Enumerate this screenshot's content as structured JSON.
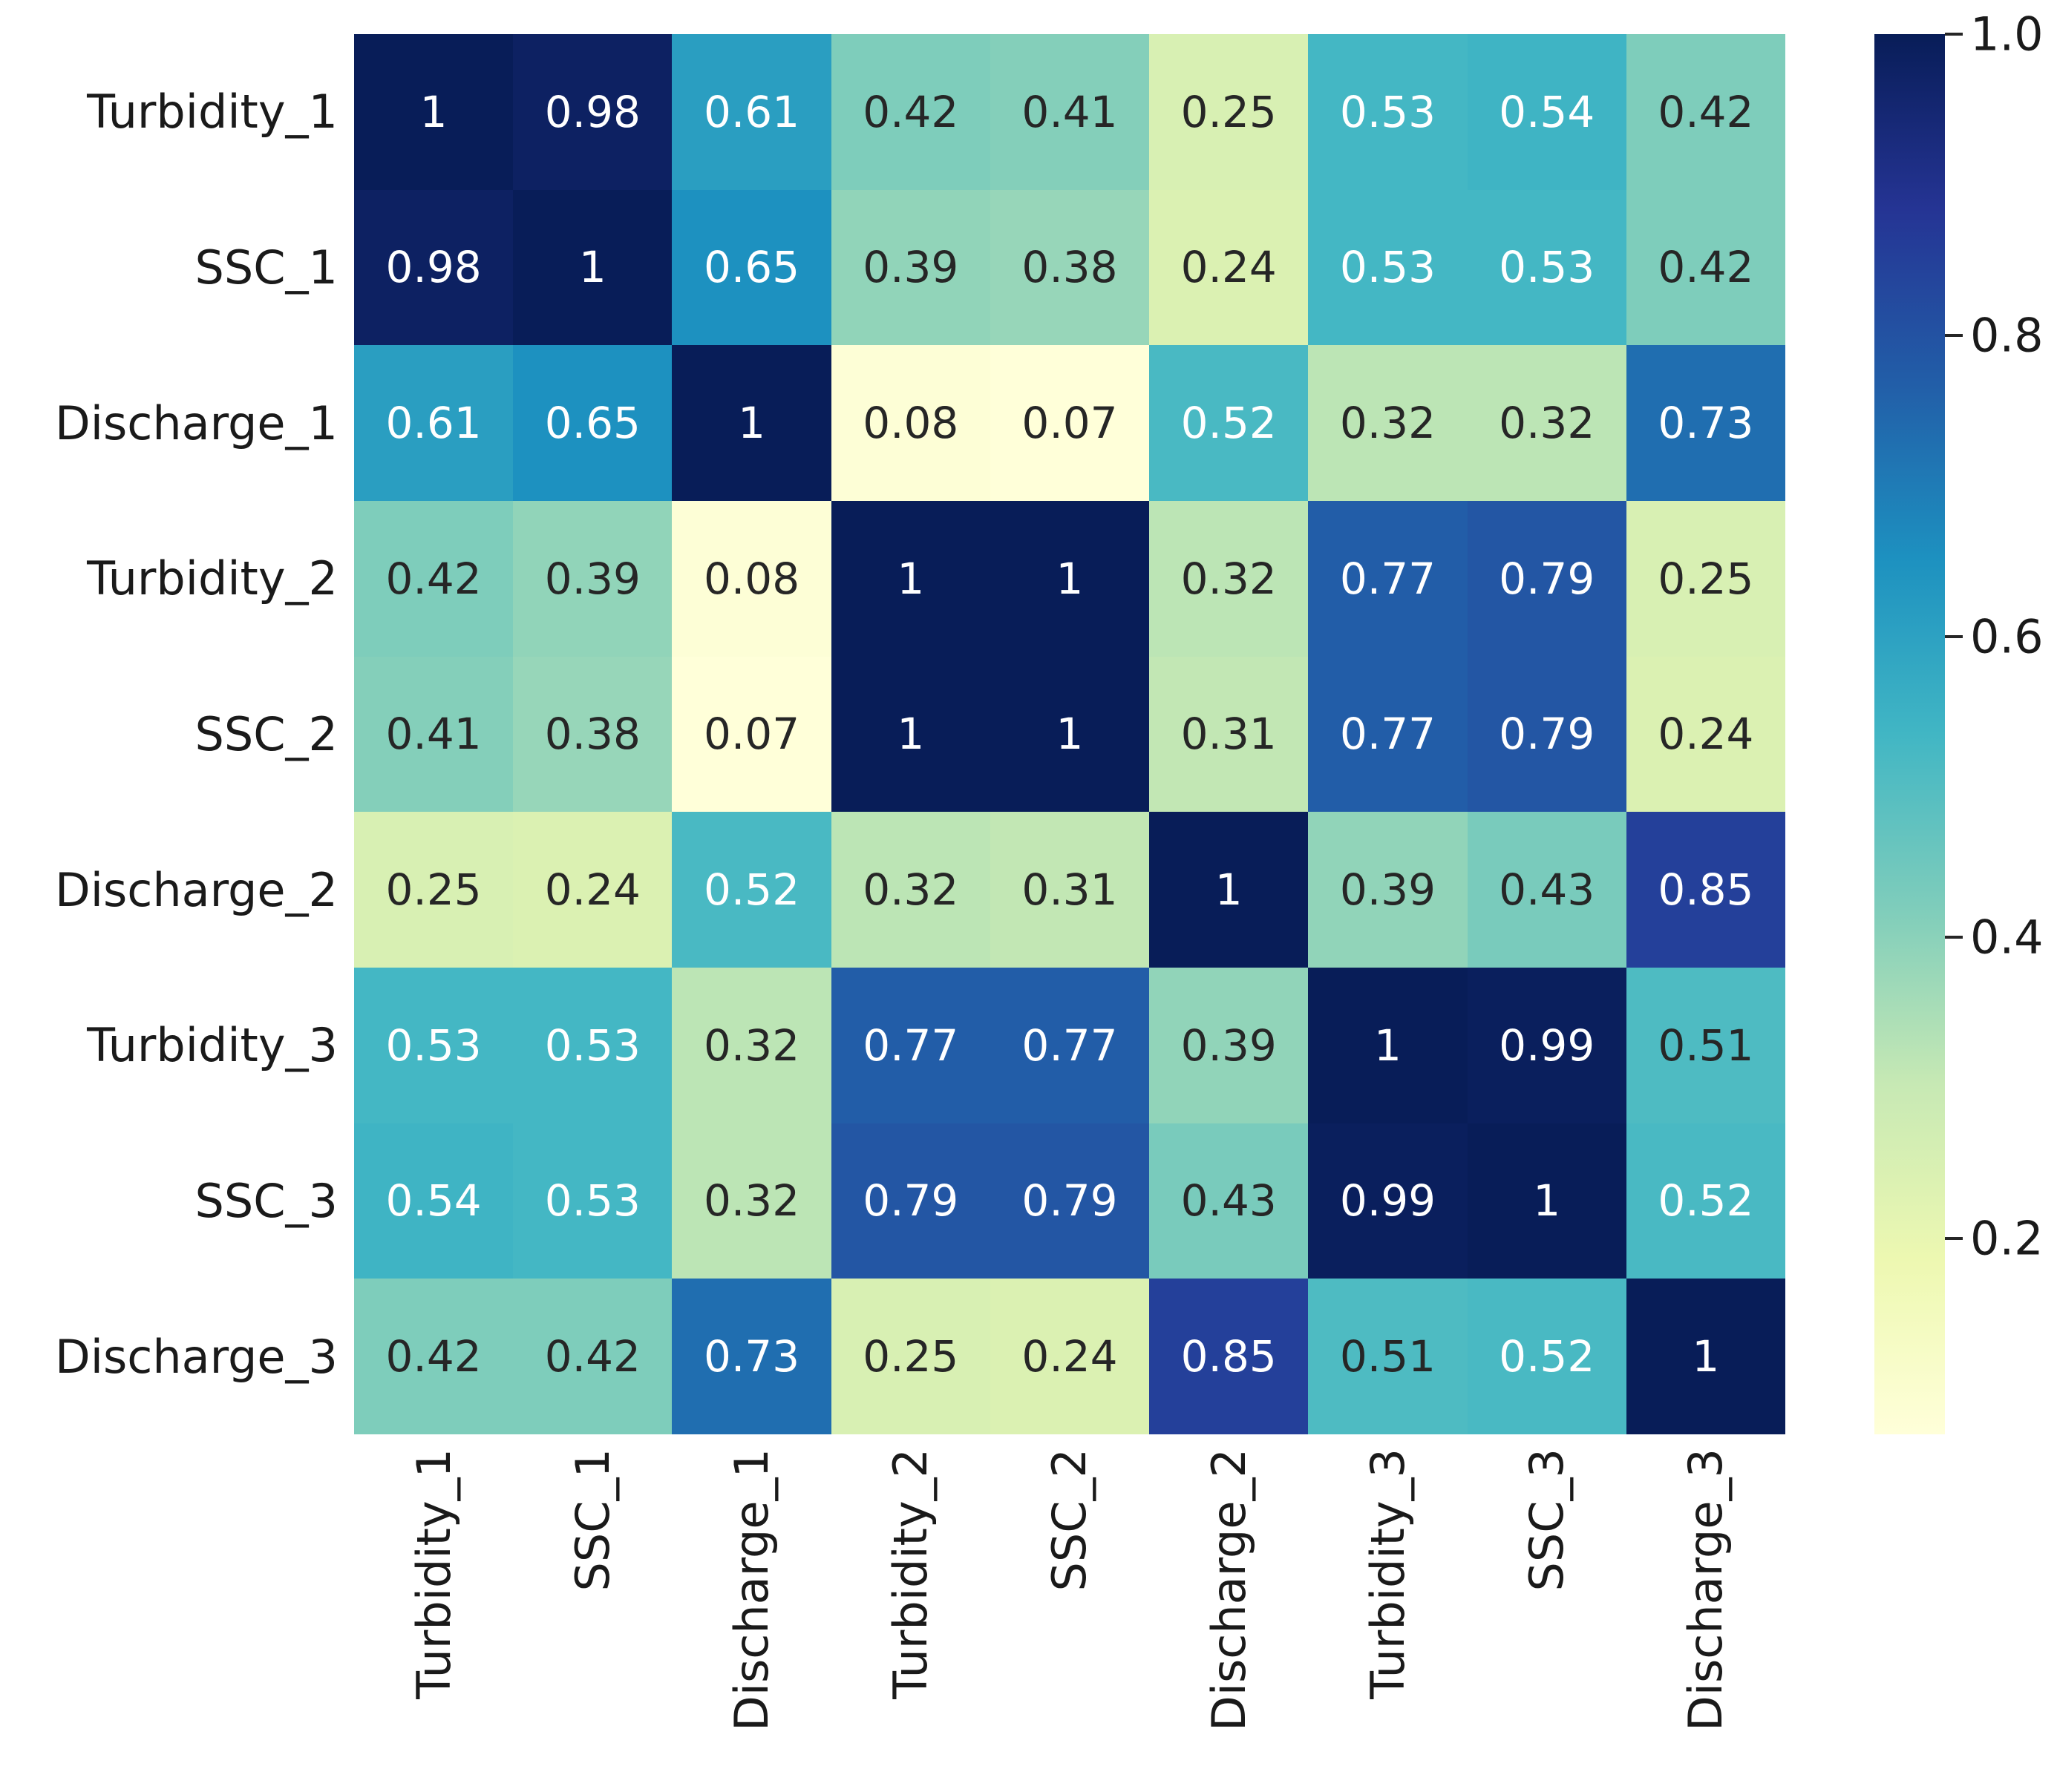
{
  "figure": {
    "kind": "correlation-heatmap",
    "background_color": "#ffffff",
    "axis_label_color": "#1a1a1a",
    "annotation_text_dark": "#262626",
    "annotation_text_light": "#ffffff"
  },
  "chart_data": {
    "type": "heatmap",
    "title": "",
    "xlabel": "",
    "ylabel": "",
    "grid": "off",
    "legend_position": "colorbar-right",
    "row_labels": [
      "Turbidity_1",
      "SSC_1",
      "Discharge_1",
      "Turbidity_2",
      "SSC_2",
      "Discharge_2",
      "Turbidity_3",
      "SSC_3",
      "Discharge_3"
    ],
    "col_labels": [
      "Turbidity_1",
      "SSC_1",
      "Discharge_1",
      "Turbidity_2",
      "SSC_2",
      "Discharge_2",
      "Turbidity_3",
      "SSC_3",
      "Discharge_3"
    ],
    "values": [
      [
        "1",
        "0.98",
        "0.61",
        "0.42",
        "0.41",
        "0.25",
        "0.53",
        "0.54",
        "0.42"
      ],
      [
        "0.98",
        "1",
        "0.65",
        "0.39",
        "0.38",
        "0.24",
        "0.53",
        "0.53",
        "0.42"
      ],
      [
        "0.61",
        "0.65",
        "1",
        "0.08",
        "0.07",
        "0.52",
        "0.32",
        "0.32",
        "0.73"
      ],
      [
        "0.42",
        "0.39",
        "0.08",
        "1",
        "1",
        "0.32",
        "0.77",
        "0.79",
        "0.25"
      ],
      [
        "0.41",
        "0.38",
        "0.07",
        "1",
        "1",
        "0.31",
        "0.77",
        "0.79",
        "0.24"
      ],
      [
        "0.25",
        "0.24",
        "0.52",
        "0.32",
        "0.31",
        "1",
        "0.39",
        "0.43",
        "0.85"
      ],
      [
        "0.53",
        "0.53",
        "0.32",
        "0.77",
        "0.77",
        "0.39",
        "1",
        "0.99",
        "0.51"
      ],
      [
        "0.54",
        "0.53",
        "0.32",
        "0.79",
        "0.79",
        "0.43",
        "0.99",
        "1",
        "0.52"
      ],
      [
        "0.42",
        "0.42",
        "0.73",
        "0.25",
        "0.24",
        "0.85",
        "0.51",
        "0.52",
        "1"
      ]
    ],
    "color_scale": {
      "name": "YlGnBu",
      "vmin": 0.07,
      "vmax": 1.0,
      "stops": [
        {
          "t": 0.0,
          "color": "#ffffd9"
        },
        {
          "t": 0.125,
          "color": "#edf8b1"
        },
        {
          "t": 0.25,
          "color": "#c7e9b4"
        },
        {
          "t": 0.375,
          "color": "#7fcdbb"
        },
        {
          "t": 0.5,
          "color": "#41b6c4"
        },
        {
          "t": 0.625,
          "color": "#1d91c0"
        },
        {
          "t": 0.75,
          "color": "#225ea8"
        },
        {
          "t": 0.875,
          "color": "#253494"
        },
        {
          "t": 1.0,
          "color": "#081d58"
        }
      ]
    },
    "colorbar": {
      "ticks": [
        {
          "value": 1.0,
          "label": "1.0"
        },
        {
          "value": 0.8,
          "label": "0.8"
        },
        {
          "value": 0.6,
          "label": "0.6"
        },
        {
          "value": 0.4,
          "label": "0.4"
        },
        {
          "value": 0.2,
          "label": "0.2"
        }
      ]
    }
  }
}
